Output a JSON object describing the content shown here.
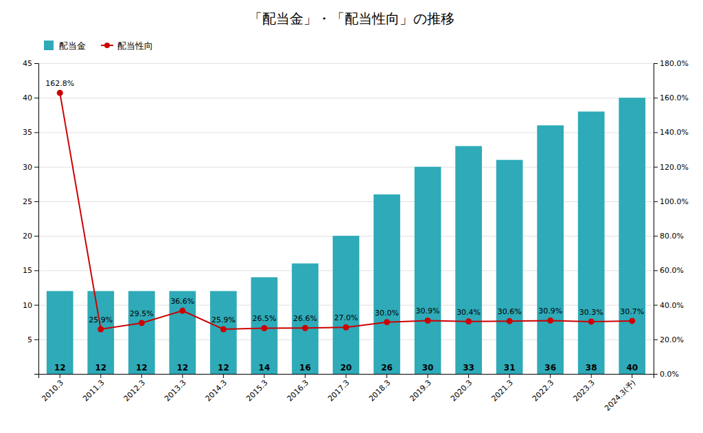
{
  "chart_data": {
    "type": "bar",
    "title": "「配当金」・「配当性向」の推移",
    "categories": [
      "2010.3",
      "2011.3",
      "2012.3",
      "2013.3",
      "2014.3",
      "2015.3",
      "2016.3",
      "2017.3",
      "2018.3",
      "2019.3",
      "2020.3",
      "2021.3",
      "2022.3",
      "2023.3",
      "2024.3(予)"
    ],
    "series": [
      {
        "name": "配当金",
        "type": "bar",
        "color": "#2EAAB8",
        "values": [
          12,
          12,
          12,
          12,
          12,
          14,
          16,
          20,
          26,
          30,
          33,
          31,
          36,
          38,
          40
        ],
        "data_labels": true
      },
      {
        "name": "配当性向",
        "type": "line",
        "axis": "y2",
        "color": "#CC0000",
        "marker": "circle",
        "values": [
          162.8,
          25.9,
          29.5,
          36.6,
          25.9,
          26.5,
          26.6,
          27.0,
          30.0,
          30.9,
          30.4,
          30.6,
          30.9,
          30.3,
          30.7
        ],
        "value_labels": [
          "162.8%",
          "25.9%",
          "29.5%",
          "36.6%",
          "25.9%",
          "26.5%",
          "26.6%",
          "27.0%",
          "30.0%",
          "30.9%",
          "30.4%",
          "30.6%",
          "30.9%",
          "30.3%",
          "30.7%"
        ],
        "data_labels": true
      }
    ],
    "ylim": [
      0,
      45
    ],
    "yticks": [
      5,
      10,
      15,
      20,
      25,
      30,
      35,
      40,
      45
    ],
    "y2lim": [
      0,
      180
    ],
    "y2ticks": [
      {
        "value": 0,
        "label": "0.0%"
      },
      {
        "value": 20,
        "label": "20.0%"
      },
      {
        "value": 40,
        "label": "40.0%"
      },
      {
        "value": 60,
        "label": "60.0%"
      },
      {
        "value": 80,
        "label": "80.0%"
      },
      {
        "value": 100,
        "label": "100.0%"
      },
      {
        "value": 120,
        "label": "120.0%"
      },
      {
        "value": 140,
        "label": "140.0%"
      },
      {
        "value": 160,
        "label": "160.0%"
      },
      {
        "value": 180,
        "label": "180.0%"
      }
    ],
    "grid": true,
    "legend": "upper left"
  }
}
